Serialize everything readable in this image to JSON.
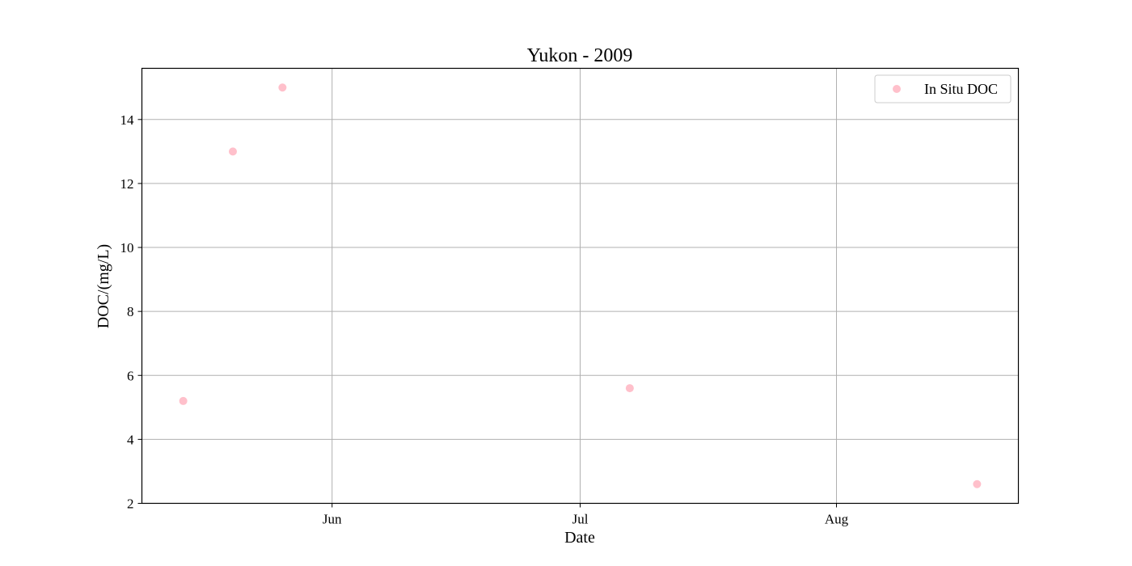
{
  "chart_data": {
    "type": "scatter",
    "title": "Yukon - 2009",
    "xlabel": "Date",
    "ylabel": "DOC/(mg/L)",
    "xlim": [
      "2009-05-09",
      "2009-08-23"
    ],
    "ylim": [
      2,
      15.6
    ],
    "x_ticks": [
      {
        "date": "2009-06-01",
        "label": "Jun"
      },
      {
        "date": "2009-07-01",
        "label": "Jul"
      },
      {
        "date": "2009-08-01",
        "label": "Aug"
      }
    ],
    "y_ticks": [
      2,
      4,
      6,
      8,
      10,
      12,
      14
    ],
    "grid": true,
    "legend_position": "top-right",
    "series": [
      {
        "name": "In Situ DOC",
        "color": "#ffc0cb",
        "points": [
          {
            "x": "2009-05-14",
            "y": 5.2
          },
          {
            "x": "2009-05-20",
            "y": 13.0
          },
          {
            "x": "2009-05-26",
            "y": 15.0
          },
          {
            "x": "2009-07-07",
            "y": 5.6
          },
          {
            "x": "2009-08-18",
            "y": 2.6
          }
        ]
      }
    ]
  }
}
